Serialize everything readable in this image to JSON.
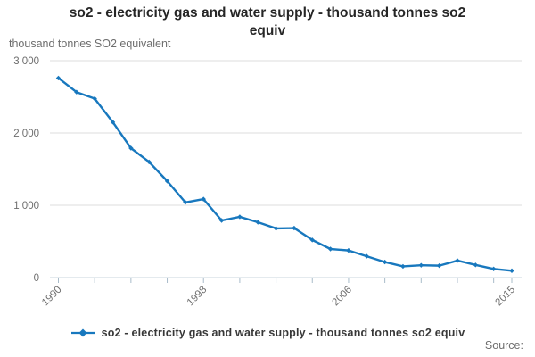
{
  "title_lines": [
    "so2 - electricity gas and water supply - thousand tonnes so2",
    "equiv"
  ],
  "y_axis_title": "thousand tonnes SO2 equivalent",
  "legend_label": "so2 - electricity gas and water supply - thousand tonnes so2 equiv",
  "source_label": "Source:",
  "colors": {
    "line": "#1878be",
    "grid": "#dcdcdc",
    "axis_line": "#c9d4dc",
    "tick": "#a9bcca",
    "tick_label": "#6e6e6e",
    "title_text": "#262626",
    "legend_text": "#383838",
    "background": "#ffffff"
  },
  "chart_data": {
    "type": "line",
    "title": "so2 - electricity gas and water supply - thousand tonnes so2 equiv",
    "xlabel": "",
    "ylabel": "thousand tonnes SO2 equivalent",
    "x": [
      1990,
      1991,
      1992,
      1993,
      1994,
      1995,
      1996,
      1997,
      1998,
      1999,
      2000,
      2001,
      2002,
      2003,
      2004,
      2005,
      2006,
      2007,
      2008,
      2009,
      2010,
      2011,
      2012,
      2013,
      2014,
      2015
    ],
    "series": [
      {
        "name": "so2 - electricity gas and water supply - thousand tonnes so2 equiv",
        "values": [
          2760,
          2565,
          2475,
          2150,
          1790,
          1600,
          1335,
          1040,
          1085,
          790,
          840,
          765,
          680,
          685,
          520,
          395,
          375,
          295,
          215,
          155,
          170,
          165,
          235,
          175,
          120,
          95
        ]
      }
    ],
    "ylim": [
      0,
      3000
    ],
    "yticks": [
      0,
      1000,
      2000,
      3000
    ],
    "ytick_labels": [
      "0",
      "1 000",
      "2 000",
      "3 000"
    ],
    "xticks": [
      1990,
      1992,
      1994,
      1996,
      1998,
      2000,
      2002,
      2004,
      2006,
      2008,
      2010,
      2012,
      2014,
      2015
    ],
    "xticks_labeled": [
      1990,
      1998,
      2006,
      2015
    ],
    "grid": "horizontal",
    "legend_position": "bottom",
    "marker": "diamond"
  }
}
